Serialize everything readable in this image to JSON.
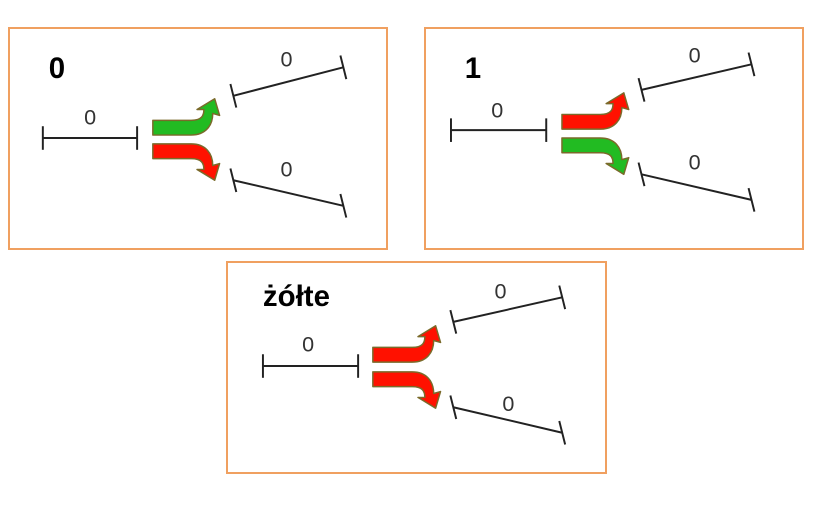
{
  "colors": {
    "panel_border": "#f0a060",
    "green": "#22bb22",
    "red": "#ff1100",
    "track": "#222222"
  },
  "panels": [
    {
      "state_label": "0",
      "incoming_track_label": "0",
      "upper_track_label": "0",
      "lower_track_label": "0",
      "upper_arrow_color": "green",
      "lower_arrow_color": "red"
    },
    {
      "state_label": "1",
      "incoming_track_label": "0",
      "upper_track_label": "0",
      "lower_track_label": "0",
      "upper_arrow_color": "red",
      "lower_arrow_color": "green"
    },
    {
      "state_label": "żółte",
      "incoming_track_label": "0",
      "upper_track_label": "0",
      "lower_track_label": "0",
      "upper_arrow_color": "red",
      "lower_arrow_color": "red"
    }
  ]
}
